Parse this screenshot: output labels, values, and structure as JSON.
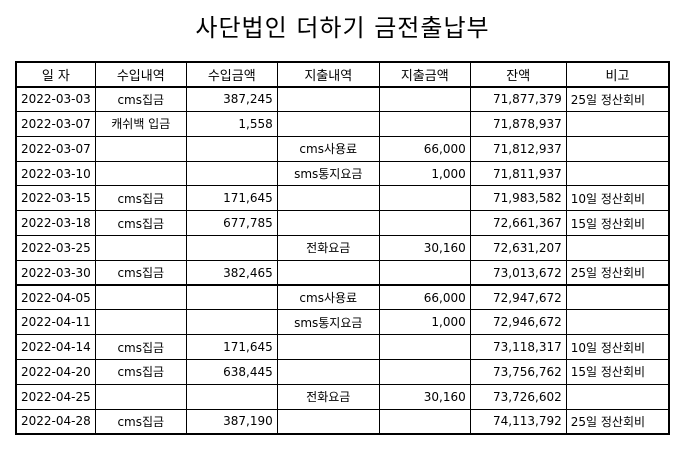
{
  "title": "사단법인 더하기 금전출납부",
  "columns": [
    "일  자",
    "수입내역",
    "수입금액",
    "지출내역",
    "지출금액",
    "잔액",
    "비고"
  ],
  "rows": [
    {
      "date": "2022-03-03",
      "in_desc": "cms집금",
      "in_amt": "387,245",
      "out_desc": "",
      "out_amt": "",
      "balance": "71,877,379",
      "note": "25일 정산회비"
    },
    {
      "date": "2022-03-07",
      "in_desc": "캐쉬백 입금",
      "in_amt": "1,558",
      "out_desc": "",
      "out_amt": "",
      "balance": "71,878,937",
      "note": ""
    },
    {
      "date": "2022-03-07",
      "in_desc": "",
      "in_amt": "",
      "out_desc": "cms사용료",
      "out_amt": "66,000",
      "balance": "71,812,937",
      "note": ""
    },
    {
      "date": "2022-03-10",
      "in_desc": "",
      "in_amt": "",
      "out_desc": "sms통지요금",
      "out_amt": "1,000",
      "balance": "71,811,937",
      "note": ""
    },
    {
      "date": "2022-03-15",
      "in_desc": "cms집금",
      "in_amt": "171,645",
      "out_desc": "",
      "out_amt": "",
      "balance": "71,983,582",
      "note": "10일 정산회비"
    },
    {
      "date": "2022-03-18",
      "in_desc": "cms집금",
      "in_amt": "677,785",
      "out_desc": "",
      "out_amt": "",
      "balance": "72,661,367",
      "note": "15일 정산회비"
    },
    {
      "date": "2022-03-25",
      "in_desc": "",
      "in_amt": "",
      "out_desc": "전화요금",
      "out_amt": "30,160",
      "balance": "72,631,207",
      "note": ""
    },
    {
      "date": "2022-03-30",
      "in_desc": "cms집금",
      "in_amt": "382,465",
      "out_desc": "",
      "out_amt": "",
      "balance": "73,013,672",
      "note": "25일 정산회비"
    },
    {
      "date": "2022-04-05",
      "in_desc": "",
      "in_amt": "",
      "out_desc": "cms사용료",
      "out_amt": "66,000",
      "balance": "72,947,672",
      "note": ""
    },
    {
      "date": "2022-04-11",
      "in_desc": "",
      "in_amt": "",
      "out_desc": "sms통지요금",
      "out_amt": "1,000",
      "balance": "72,946,672",
      "note": ""
    },
    {
      "date": "2022-04-14",
      "in_desc": "cms집금",
      "in_amt": "171,645",
      "out_desc": "",
      "out_amt": "",
      "balance": "73,118,317",
      "note": "10일 정산회비"
    },
    {
      "date": "2022-04-20",
      "in_desc": "cms집금",
      "in_amt": "638,445",
      "out_desc": "",
      "out_amt": "",
      "balance": "73,756,762",
      "note": "15일 정산회비"
    },
    {
      "date": "2022-04-25",
      "in_desc": "",
      "in_amt": "",
      "out_desc": "전화요금",
      "out_amt": "30,160",
      "balance": "73,726,602",
      "note": ""
    },
    {
      "date": "2022-04-28",
      "in_desc": "cms집금",
      "in_amt": "387,190",
      "out_desc": "",
      "out_amt": "",
      "balance": "74,113,792",
      "note": "25일 정산회비"
    }
  ]
}
